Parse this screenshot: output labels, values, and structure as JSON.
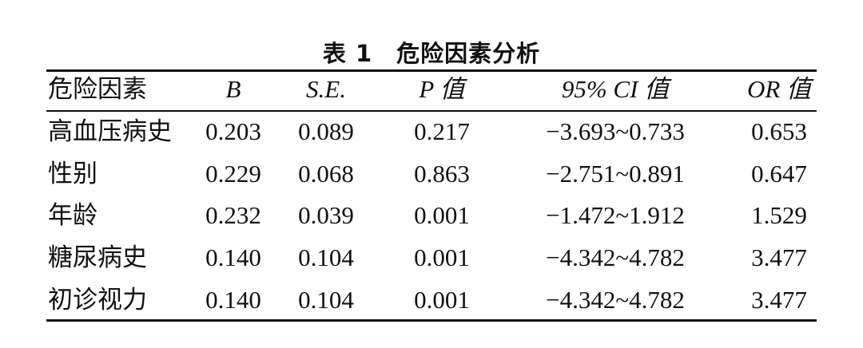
{
  "title": "表 1　危险因素分析",
  "table": {
    "header": [
      "危险因素",
      "B",
      "S.E.",
      "P 值",
      "95% CI 值",
      "OR 值"
    ],
    "rows": [
      [
        "高血压病史",
        "0.203",
        "0.089",
        "0.217",
        "−3.693~0.733",
        "0.653"
      ],
      [
        "性别",
        "0.229",
        "0.068",
        "0.863",
        "−2.751~0.891",
        "0.647"
      ],
      [
        "年龄",
        "0.232",
        "0.039",
        "0.001",
        "−1.472~1.912",
        "1.529"
      ],
      [
        "糖尿病史",
        "0.140",
        "0.104",
        "0.001",
        "−4.342~4.782",
        "3.477"
      ],
      [
        "初诊视力",
        "0.140",
        "0.104",
        "0.001",
        "−4.342~4.782",
        "3.477"
      ]
    ]
  }
}
